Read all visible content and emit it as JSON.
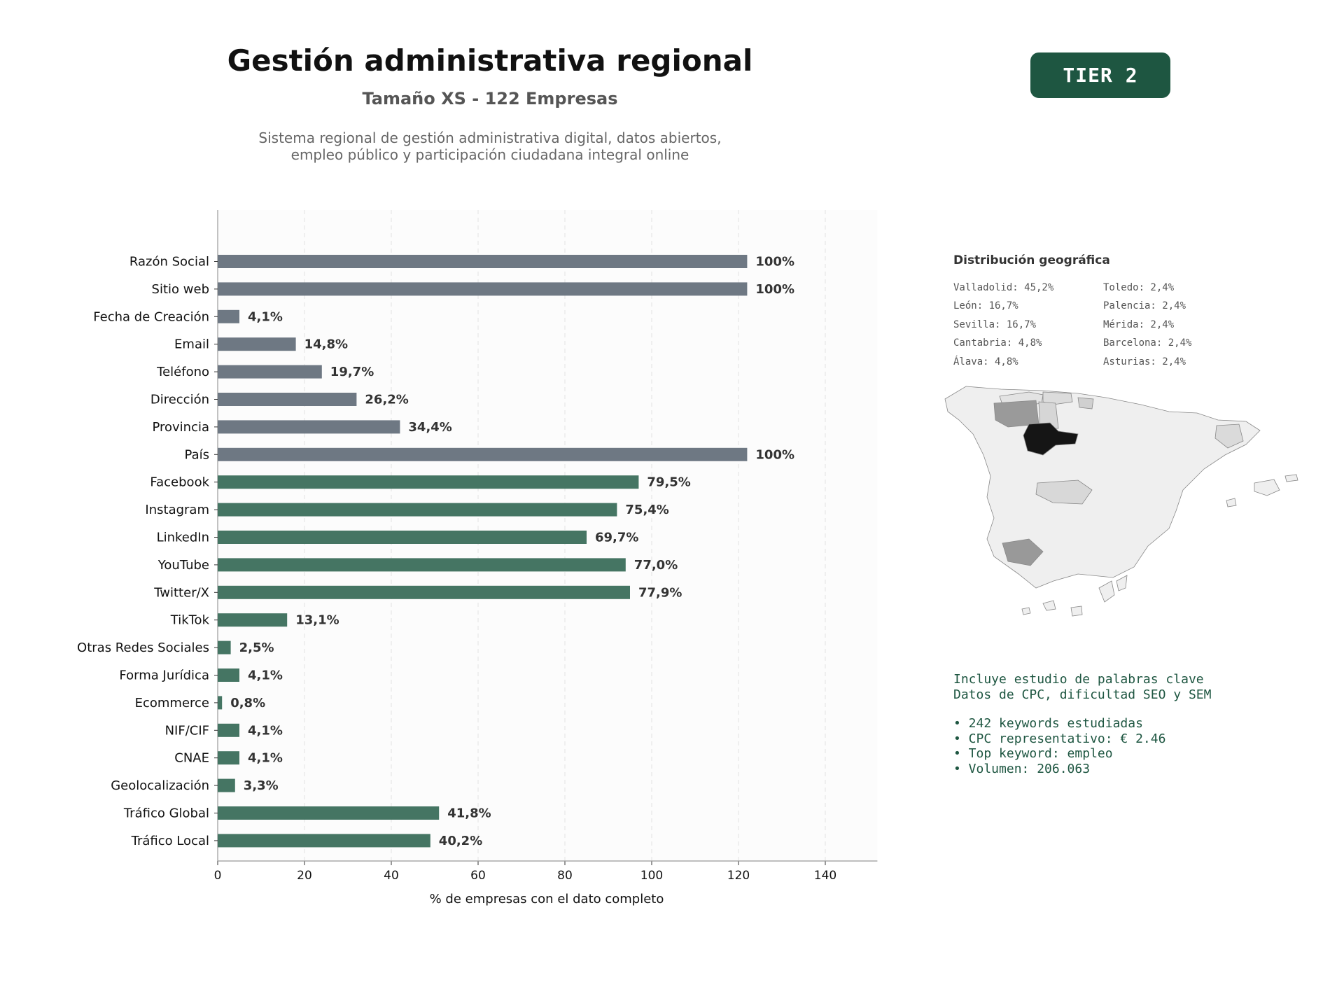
{
  "header": {
    "title": "Gestión administrativa regional",
    "subtitle": "Tamaño XS - 122 Empresas",
    "description_line1": "Sistema regional de gestión administrativa digital, datos abiertos,",
    "description_line2": "empleo público y participación ciudadana integral online",
    "badge": "TIER 2"
  },
  "colors": {
    "gray_bar": "#6e7883",
    "green_bar": "#457563",
    "badge_bg": "#1e5641",
    "accent_text": "#1e5641"
  },
  "chart_data": {
    "type": "bar",
    "orientation": "horizontal",
    "xlabel": "% de empresas con el dato completo",
    "xlim": [
      0,
      152
    ],
    "xticks": [
      0,
      20,
      40,
      60,
      80,
      100,
      120,
      140
    ],
    "grid": "vertical-dashed",
    "categories": [
      "Razón Social",
      "Sitio web",
      "Fecha de Creación",
      "Email",
      "Teléfono",
      "Dirección",
      "Provincia",
      "País",
      "Facebook",
      "Instagram",
      "LinkedIn",
      "YouTube",
      "Twitter/X",
      "TikTok",
      "Otras Redes Sociales",
      "Forma Jurídica",
      "Ecommerce",
      "NIF/CIF",
      "CNAE",
      "Geolocalización",
      "Tráfico Global",
      "Tráfico Local"
    ],
    "values": [
      122,
      122,
      5,
      18,
      24,
      32,
      42,
      122,
      97,
      92,
      85,
      94,
      95,
      16,
      3,
      5,
      1,
      5,
      5,
      4,
      51,
      49
    ],
    "labels": [
      "100%",
      "100%",
      "4,1%",
      "14,8%",
      "19,7%",
      "26,2%",
      "34,4%",
      "100%",
      "79,5%",
      "75,4%",
      "69,7%",
      "77,0%",
      "77,9%",
      "13,1%",
      "2,5%",
      "4,1%",
      "0,8%",
      "4,1%",
      "4,1%",
      "3,3%",
      "41,8%",
      "40,2%"
    ],
    "groups": [
      "gray",
      "gray",
      "gray",
      "gray",
      "gray",
      "gray",
      "gray",
      "gray",
      "green",
      "green",
      "green",
      "green",
      "green",
      "green",
      "green",
      "green",
      "green",
      "green",
      "green",
      "green",
      "green",
      "green"
    ]
  },
  "geo": {
    "title": "Distribución geográfica",
    "col1": [
      "Valladolid: 45,2%",
      "León: 16,7%",
      "Sevilla: 16,7%",
      "Cantabria: 4,8%",
      "Álava: 4,8%"
    ],
    "col2": [
      "Toledo: 2,4%",
      "Palencia: 2,4%",
      "Mérida: 2,4%",
      "Barcelona: 2,4%",
      "Asturias: 2,4%"
    ]
  },
  "keywords": {
    "line1": "Incluye estudio de palabras clave",
    "line2": "Datos de CPC, dificultad SEO y SEM",
    "bullets": [
      "• 242 keywords estudiadas",
      "• CPC representativo: € 2.46",
      "• Top keyword: empleo",
      "• Volumen: 206.063"
    ]
  }
}
